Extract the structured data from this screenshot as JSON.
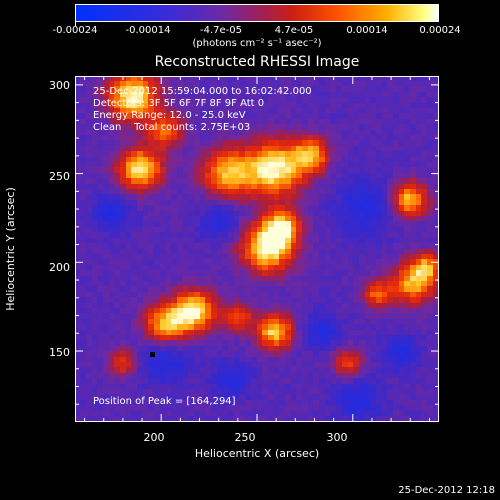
{
  "colorbar": {
    "labels": [
      "-0.00024",
      "-0.00014",
      "-4.7e-05",
      "4.7e-05",
      "0.00014",
      "0.00024"
    ],
    "unit": "(photons cm⁻² s⁻¹ asec⁻²)",
    "colors": [
      "#0030ff",
      "#6a2aa8",
      "#cc2010",
      "#ffb000",
      "#ffffff"
    ]
  },
  "title": "Reconstructed RHESSI Image",
  "annotations": {
    "line1": "25-Dec-2012 15:59:04.000 to 16:02:42.000",
    "line2": "Detectors: 3F 5F 6F 7F 8F 9F Att 0",
    "line3": "Energy Range: 12.0 - 25.0 keV",
    "line4": "Clean    Total counts: 2.75E+03",
    "peak": "Position of Peak = [164,294]"
  },
  "axes": {
    "x_label": "Heliocentric X (arcsec)",
    "y_label": "Heliocentric Y (arcsec)",
    "x_ticks": [
      "200",
      "250",
      "300"
    ],
    "y_ticks": [
      "150",
      "200",
      "250",
      "300"
    ],
    "x_range": [
      155,
      345
    ],
    "y_range": [
      110,
      305
    ]
  },
  "timestamp": "25-Dec-2012 12:18"
}
